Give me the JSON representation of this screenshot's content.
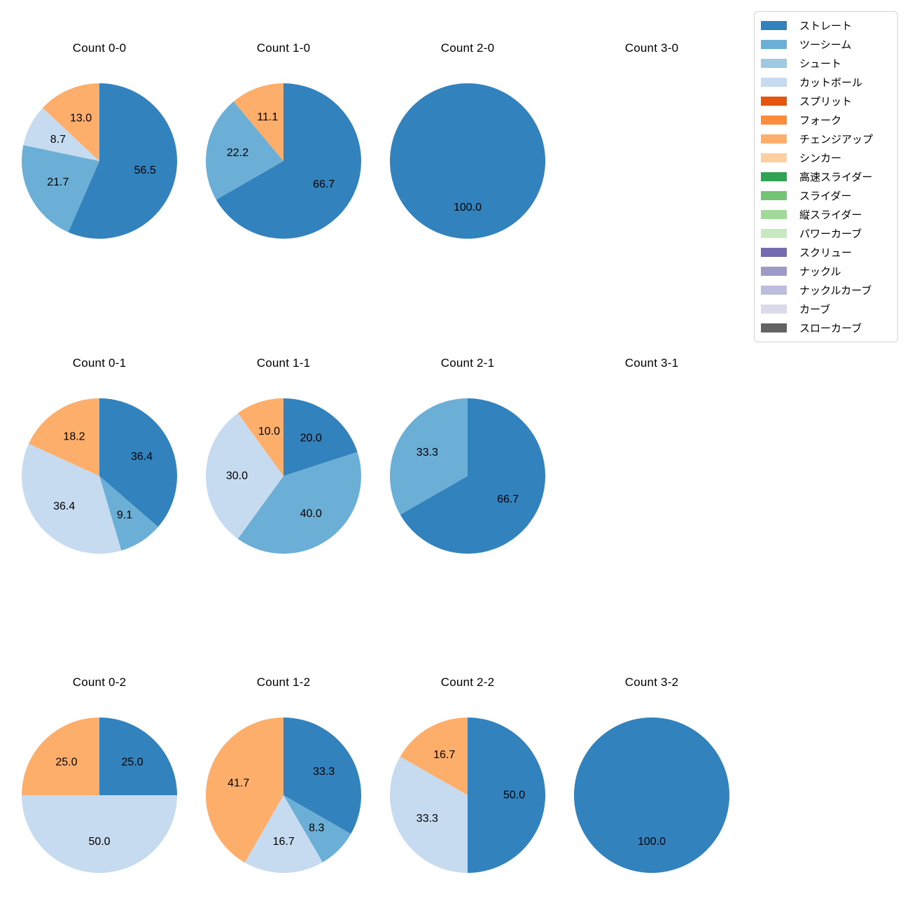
{
  "figure": {
    "background": "#ffffff",
    "text_color": "#000000"
  },
  "legend": {
    "position": "upper-right",
    "entries": [
      {
        "label": "ストレート",
        "color": "#3182bd"
      },
      {
        "label": "ツーシーム",
        "color": "#6baed6"
      },
      {
        "label": "シュート",
        "color": "#9ecae1"
      },
      {
        "label": "カットボール",
        "color": "#c6dbef"
      },
      {
        "label": "スプリット",
        "color": "#e6550d"
      },
      {
        "label": "フォーク",
        "color": "#fd8d3c"
      },
      {
        "label": "チェンジアップ",
        "color": "#fdae6b"
      },
      {
        "label": "シンカー",
        "color": "#fdd0a2"
      },
      {
        "label": "高速スライダー",
        "color": "#31a354"
      },
      {
        "label": "スライダー",
        "color": "#74c476"
      },
      {
        "label": "縦スライダー",
        "color": "#a1d99b"
      },
      {
        "label": "パワーカーブ",
        "color": "#c7e9c0"
      },
      {
        "label": "スクリュー",
        "color": "#756bb1"
      },
      {
        "label": "ナックル",
        "color": "#9e9ac8"
      },
      {
        "label": "ナックルカーブ",
        "color": "#bcbddc"
      },
      {
        "label": "カーブ",
        "color": "#dadaeb"
      },
      {
        "label": "スローカーブ",
        "color": "#636363"
      }
    ]
  },
  "chart_data": {
    "type": "pie",
    "grid": {
      "rows": 3,
      "cols": 4
    },
    "start_angle_deg": 90,
    "direction": "clockwise",
    "value_unit": "percent",
    "label_decimals": 1,
    "pies": [
      {
        "title": "Count 0-0",
        "slices": [
          {
            "pitch": "ストレート",
            "value": 56.5
          },
          {
            "pitch": "ツーシーム",
            "value": 21.7
          },
          {
            "pitch": "カットボール",
            "value": 8.7
          },
          {
            "pitch": "チェンジアップ",
            "value": 13.0
          }
        ]
      },
      {
        "title": "Count 1-0",
        "slices": [
          {
            "pitch": "ストレート",
            "value": 66.7
          },
          {
            "pitch": "ツーシーム",
            "value": 22.2
          },
          {
            "pitch": "チェンジアップ",
            "value": 11.1
          }
        ]
      },
      {
        "title": "Count 2-0",
        "slices": [
          {
            "pitch": "ストレート",
            "value": 100.0
          }
        ]
      },
      {
        "title": "Count 3-0",
        "slices": []
      },
      {
        "title": "Count 0-1",
        "slices": [
          {
            "pitch": "ストレート",
            "value": 36.4
          },
          {
            "pitch": "ツーシーム",
            "value": 9.1
          },
          {
            "pitch": "カットボール",
            "value": 36.4
          },
          {
            "pitch": "チェンジアップ",
            "value": 18.2
          }
        ]
      },
      {
        "title": "Count 1-1",
        "slices": [
          {
            "pitch": "ストレート",
            "value": 20.0
          },
          {
            "pitch": "ツーシーム",
            "value": 40.0
          },
          {
            "pitch": "カットボール",
            "value": 30.0
          },
          {
            "pitch": "チェンジアップ",
            "value": 10.0
          }
        ]
      },
      {
        "title": "Count 2-1",
        "slices": [
          {
            "pitch": "ストレート",
            "value": 66.7
          },
          {
            "pitch": "ツーシーム",
            "value": 33.3
          }
        ]
      },
      {
        "title": "Count 3-1",
        "slices": []
      },
      {
        "title": "Count 0-2",
        "slices": [
          {
            "pitch": "ストレート",
            "value": 25.0
          },
          {
            "pitch": "カットボール",
            "value": 50.0
          },
          {
            "pitch": "チェンジアップ",
            "value": 25.0
          }
        ]
      },
      {
        "title": "Count 1-2",
        "slices": [
          {
            "pitch": "ストレート",
            "value": 33.3
          },
          {
            "pitch": "ツーシーム",
            "value": 8.3
          },
          {
            "pitch": "カットボール",
            "value": 16.7
          },
          {
            "pitch": "チェンジアップ",
            "value": 41.7
          }
        ]
      },
      {
        "title": "Count 2-2",
        "slices": [
          {
            "pitch": "ストレート",
            "value": 50.0
          },
          {
            "pitch": "カットボール",
            "value": 33.3
          },
          {
            "pitch": "チェンジアップ",
            "value": 16.7
          }
        ]
      },
      {
        "title": "Count 3-2",
        "slices": [
          {
            "pitch": "ストレート",
            "value": 100.0
          }
        ]
      }
    ]
  }
}
